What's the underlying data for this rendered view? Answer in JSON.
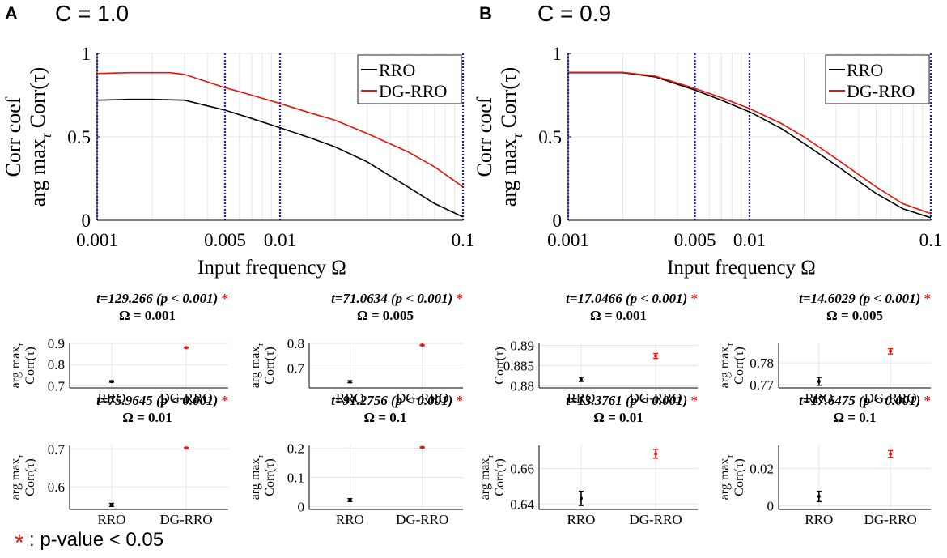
{
  "panels": [
    {
      "letter": "A",
      "condition": "C = 1.0",
      "main": {
        "type": "line",
        "xscale": "log",
        "xlim": [
          0.001,
          0.1
        ],
        "ylim": [
          0,
          1
        ],
        "xticks": [
          0.001,
          0.005,
          0.01,
          0.1
        ],
        "xtick_labels": [
          "0.001",
          "0.005",
          "0.01",
          "0.1"
        ],
        "yticks": [
          0,
          0.5,
          1
        ],
        "ytick_labels": [
          "0",
          "0.5",
          "1"
        ],
        "xlabel": "Input frequency  Ω",
        "ylabel_line1": "Corr coef",
        "ylabel_line2": "arg max",
        "ylabel_sub": "τ",
        "ylabel_tail": " Corr(τ)",
        "vlines": [
          0.001,
          0.005,
          0.01,
          0.1
        ],
        "legend_position": "top-right",
        "series": [
          {
            "name": "RRO",
            "color": "#000000",
            "x": [
              0.001,
              0.0015,
              0.002,
              0.003,
              0.005,
              0.007,
              0.01,
              0.015,
              0.02,
              0.03,
              0.05,
              0.07,
              0.1
            ],
            "y": [
              0.72,
              0.725,
              0.725,
              0.72,
              0.66,
              0.61,
              0.555,
              0.49,
              0.44,
              0.35,
              0.2,
              0.1,
              0.02
            ]
          },
          {
            "name": "DG-RRO",
            "color": "#e8140c",
            "x": [
              0.001,
              0.0015,
              0.002,
              0.0025,
              0.003,
              0.005,
              0.007,
              0.01,
              0.015,
              0.02,
              0.03,
              0.05,
              0.07,
              0.1
            ],
            "y": [
              0.88,
              0.885,
              0.885,
              0.885,
              0.875,
              0.795,
              0.75,
              0.7,
              0.64,
              0.6,
              0.52,
              0.41,
              0.32,
              0.2
            ]
          }
        ]
      },
      "subplots": [
        {
          "omega_label": "Ω = 0.001",
          "t_text": "t=129.266 (p < 0.001)",
          "star": "*",
          "categories": [
            "RRO",
            "DG-RRO"
          ],
          "values": [
            0.72,
            0.88
          ],
          "errors": [
            0.003,
            0.002
          ],
          "ylim": [
            0.69,
            0.9
          ],
          "yticks": [
            0.7,
            0.8,
            0.9
          ],
          "ytick_labels": [
            "0.7",
            "0.8",
            "0.9"
          ],
          "ylabel_line1": "arg max",
          "ylabel_sub": "τ",
          "ylabel_line2": "Corr(τ)"
        },
        {
          "omega_label": "Ω = 0.005",
          "t_text": "t=71.0634 (p < 0.001)",
          "star": "*",
          "categories": [
            "RRO",
            "DG-RRO"
          ],
          "values": [
            0.645,
            0.793
          ],
          "errors": [
            0.004,
            0.002
          ],
          "ylim": [
            0.62,
            0.8
          ],
          "yticks": [
            0.7,
            0.8
          ],
          "ytick_labels": [
            "0.7",
            "0.8"
          ],
          "ylabel_line1": "arg max",
          "ylabel_sub": "τ",
          "ylabel_line2": "Corr(τ)"
        },
        {
          "omega_label": "Ω = 0.01",
          "t_text": "t=75.9645 (p < 0.001)",
          "star": "*",
          "categories": [
            "RRO",
            "DG-RRO"
          ],
          "values": [
            0.552,
            0.703
          ],
          "errors": [
            0.004,
            0.002
          ],
          "ylim": [
            0.54,
            0.71
          ],
          "yticks": [
            0.6,
            0.7
          ],
          "ytick_labels": [
            "0.6",
            "0.7"
          ],
          "ylabel_line1": "arg max",
          "ylabel_sub": "τ",
          "ylabel_line2": "Corr(τ)"
        },
        {
          "omega_label": "Ω = 0.1",
          "t_text": "t=91.2756 (p < 0.001)",
          "star": "*",
          "categories": [
            "RRO",
            "DG-RRO"
          ],
          "values": [
            0.022,
            0.203
          ],
          "errors": [
            0.005,
            0.002
          ],
          "ylim": [
            -0.01,
            0.21
          ],
          "yticks": [
            0,
            0.1,
            0.2
          ],
          "ytick_labels": [
            "0",
            "0.1",
            "0.2"
          ],
          "ylabel_line1": "arg max",
          "ylabel_sub": "τ",
          "ylabel_line2": "Corr(τ)"
        }
      ]
    },
    {
      "letter": "B",
      "condition": "C = 0.9",
      "main": {
        "type": "line",
        "xscale": "log",
        "xlim": [
          0.001,
          0.1
        ],
        "ylim": [
          0,
          1
        ],
        "xticks": [
          0.001,
          0.005,
          0.01,
          0.1
        ],
        "xtick_labels": [
          "0.001",
          "0.005",
          "0.01",
          "0.1"
        ],
        "yticks": [
          0,
          0.5,
          1
        ],
        "ytick_labels": [
          "0",
          "0.5",
          "1"
        ],
        "xlabel": "Input frequency  Ω",
        "ylabel_line1": "Corr coef",
        "ylabel_line2": "arg max",
        "ylabel_sub": "τ",
        "ylabel_tail": " Corr(τ)",
        "vlines": [
          0.001,
          0.005,
          0.01,
          0.1
        ],
        "legend_position": "top-right",
        "series": [
          {
            "name": "RRO",
            "color": "#000000",
            "x": [
              0.001,
              0.0015,
              0.002,
              0.003,
              0.005,
              0.007,
              0.01,
              0.015,
              0.02,
              0.03,
              0.05,
              0.07,
              0.1
            ],
            "y": [
              0.885,
              0.885,
              0.885,
              0.86,
              0.78,
              0.72,
              0.65,
              0.55,
              0.46,
              0.33,
              0.16,
              0.07,
              0.015
            ]
          },
          {
            "name": "DG-RRO",
            "color": "#e8140c",
            "x": [
              0.001,
              0.0015,
              0.002,
              0.003,
              0.005,
              0.007,
              0.01,
              0.015,
              0.02,
              0.03,
              0.05,
              0.07,
              0.1
            ],
            "y": [
              0.887,
              0.887,
              0.887,
              0.865,
              0.79,
              0.735,
              0.67,
              0.58,
              0.5,
              0.37,
              0.2,
              0.1,
              0.04
            ]
          }
        ]
      },
      "subplots": [
        {
          "omega_label": "Ω = 0.001",
          "t_text": "t=17.0466 (p < 0.001)",
          "star": "*",
          "categories": [
            "RRO",
            "DG-RRO"
          ],
          "values": [
            0.8816,
            0.8874
          ],
          "errors": [
            0.0005,
            0.0006
          ],
          "ylim": [
            0.8795,
            0.8905
          ],
          "yticks": [
            0.88,
            0.885,
            0.89
          ],
          "ytick_labels": [
            "0.88",
            "0.885",
            "0.89"
          ],
          "ylabel_line1": "",
          "ylabel_sub": "",
          "ylabel_line2": "Corr(τ)"
        },
        {
          "omega_label": "Ω = 0.005",
          "t_text": "t=14.6029 (p < 0.001)",
          "star": "*",
          "categories": [
            "RRO",
            "DG-RRO"
          ],
          "values": [
            0.7715,
            0.7853
          ],
          "errors": [
            0.0018,
            0.0012
          ],
          "ylim": [
            0.7685,
            0.789
          ],
          "yticks": [
            0.77,
            0.78
          ],
          "ytick_labels": [
            "0.77",
            "0.78"
          ],
          "ylabel_line1": "arg max",
          "ylabel_sub": "τ",
          "ylabel_line2": "Corr(τ)"
        },
        {
          "omega_label": "Ω = 0.01",
          "t_text": "t=13.3761 (p < 0.001)",
          "star": "*",
          "categories": [
            "RRO",
            "DG-RRO"
          ],
          "values": [
            0.6432,
            0.6683
          ],
          "errors": [
            0.004,
            0.0025
          ],
          "ylim": [
            0.637,
            0.673
          ],
          "yticks": [
            0.64,
            0.66
          ],
          "ytick_labels": [
            "0.64",
            "0.66"
          ],
          "ylabel_line1": "arg max",
          "ylabel_sub": "τ",
          "ylabel_line2": "Corr(τ)"
        },
        {
          "omega_label": "Ω = 0.1",
          "t_text": "t=17.6475 (p < 0.001)",
          "star": "*",
          "categories": [
            "RRO",
            "DG-RRO"
          ],
          "values": [
            0.005,
            0.0279
          ],
          "errors": [
            0.0028,
            0.0018
          ],
          "ylim": [
            -0.002,
            0.0325
          ],
          "yticks": [
            0,
            0.02
          ],
          "ytick_labels": [
            "0",
            "0.02"
          ],
          "ylabel_line1": "arg max",
          "ylabel_sub": "τ",
          "ylabel_line2": "Corr(τ)"
        }
      ]
    }
  ],
  "footnote": {
    "star": "*",
    "text": ": p-value < 0.05"
  },
  "colors": {
    "rro": "#000000",
    "dg_rro": "#e8140c",
    "vline": "#1a1acc",
    "grid": "#e6e6e6",
    "star": "#e8140c"
  }
}
